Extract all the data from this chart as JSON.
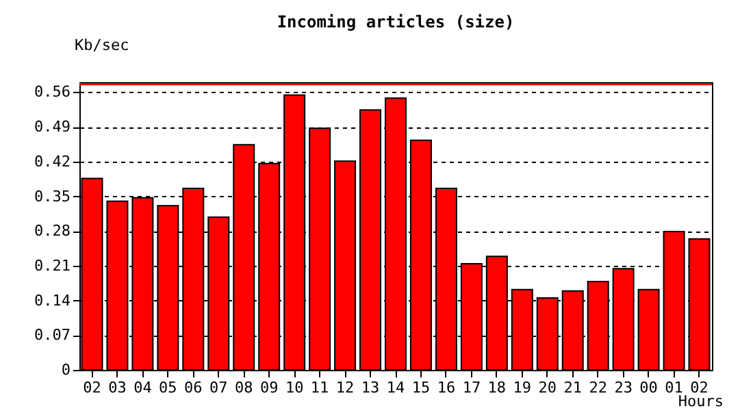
{
  "chart_data": {
    "type": "bar",
    "title": "Incoming articles (size)",
    "xlabel": "Hours",
    "ylabel": "Kb/sec",
    "categories": [
      "02",
      "03",
      "04",
      "05",
      "06",
      "07",
      "08",
      "09",
      "10",
      "11",
      "12",
      "13",
      "14",
      "15",
      "16",
      "17",
      "18",
      "19",
      "20",
      "21",
      "22",
      "23",
      "00",
      "01",
      "02"
    ],
    "values": [
      0.386,
      0.34,
      0.347,
      0.331,
      0.366,
      0.308,
      0.454,
      0.416,
      0.554,
      0.487,
      0.421,
      0.524,
      0.548,
      0.463,
      0.366,
      0.214,
      0.229,
      0.162,
      0.145,
      0.159,
      0.178,
      0.204,
      0.162,
      0.279,
      0.264
    ],
    "color": "#ff0000",
    "ylim": [
      0,
      0.58
    ],
    "yticks": [
      0,
      0.07,
      0.14,
      0.21,
      0.28,
      0.35,
      0.42,
      0.49,
      0.56
    ],
    "ref_lines": [
      {
        "axis": "y",
        "value": 0.576,
        "color": "#ff0000"
      }
    ],
    "grid": "y"
  }
}
